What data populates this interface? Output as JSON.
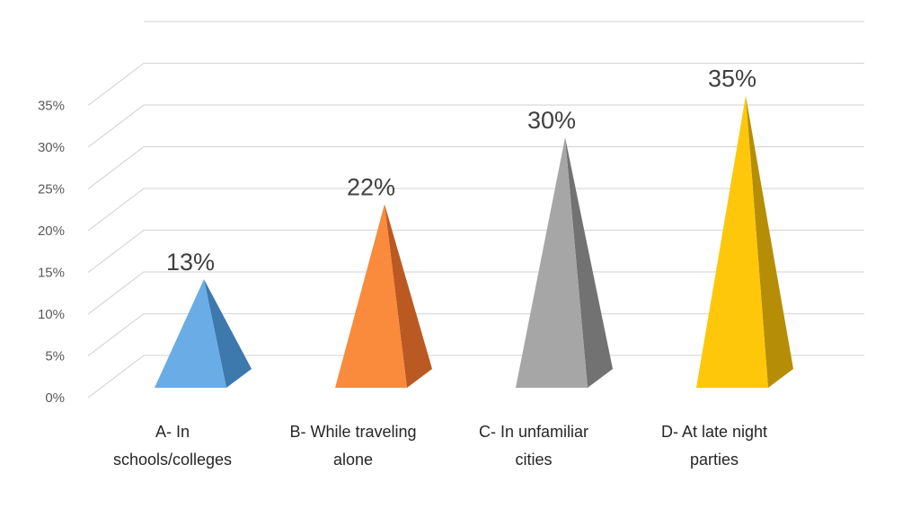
{
  "chart_data": {
    "type": "bar",
    "style": "3d-pyramid",
    "title": "",
    "xlabel": "",
    "ylabel": "",
    "ylim": [
      0,
      35
    ],
    "ytick_step": 5,
    "ytick_labels": [
      "0%",
      "5%",
      "10%",
      "15%",
      "20%",
      "25%",
      "30%",
      "35%"
    ],
    "grid": true,
    "legend": "none",
    "categories": [
      [
        "A- In",
        "schools/colleges"
      ],
      [
        "B- While traveling",
        "alone"
      ],
      [
        "C- In unfamiliar",
        "cities"
      ],
      [
        "D- At late night",
        "parties"
      ]
    ],
    "values": [
      13,
      22,
      30,
      35
    ],
    "data_labels": [
      "13%",
      "22%",
      "30%",
      "35%"
    ],
    "colors": [
      {
        "light": "#6aace6",
        "dark": "#3e79ad"
      },
      {
        "light": "#fa8a3c",
        "dark": "#ba5a22"
      },
      {
        "light": "#a6a6a6",
        "dark": "#727272"
      },
      {
        "light": "#fec70a",
        "dark": "#b68d06"
      }
    ]
  }
}
